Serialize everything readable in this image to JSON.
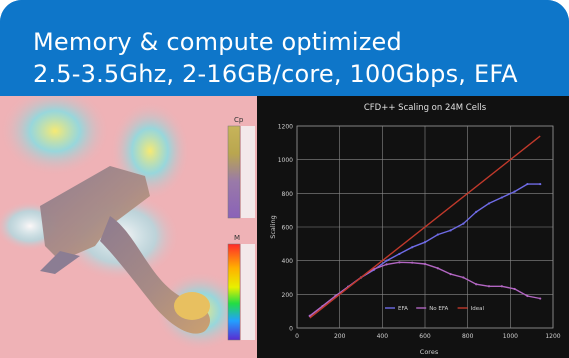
{
  "header": {
    "line1": "Memory & compute optimized",
    "line2": "2.5-3.5Ghz, 2-16GB/core, 100Gbps, EFA"
  },
  "simulation": {
    "legend_top_label": "Cp",
    "legend_bottom_label": "M"
  },
  "chart_data": {
    "type": "line",
    "title": "CFD++ Scaling on 24M Cells",
    "xlabel": "Cores",
    "ylabel": "Scaling",
    "xlim": [
      0,
      1200
    ],
    "ylim": [
      0,
      1200
    ],
    "xticks": [
      "0",
      "200",
      "400",
      "600",
      "800",
      "1000",
      "1200"
    ],
    "yticks": [
      "0",
      "200",
      "400",
      "600",
      "800",
      "1000",
      "1200"
    ],
    "grid": true,
    "legend_position": "bottom-center",
    "series": [
      {
        "name": "EFA",
        "color": "#6f6be6",
        "points": [
          [
            60,
            72
          ],
          [
            120,
            130
          ],
          [
            180,
            190
          ],
          [
            240,
            245
          ],
          [
            300,
            300
          ],
          [
            360,
            345
          ],
          [
            420,
            400
          ],
          [
            480,
            440
          ],
          [
            540,
            480
          ],
          [
            600,
            510
          ],
          [
            660,
            555
          ],
          [
            720,
            580
          ],
          [
            780,
            620
          ],
          [
            840,
            690
          ],
          [
            900,
            740
          ],
          [
            960,
            775
          ],
          [
            1020,
            810
          ],
          [
            1080,
            855
          ],
          [
            1140,
            855
          ]
        ]
      },
      {
        "name": "No EFA",
        "color": "#b266c2",
        "points": [
          [
            60,
            72
          ],
          [
            120,
            130
          ],
          [
            180,
            190
          ],
          [
            240,
            245
          ],
          [
            300,
            300
          ],
          [
            360,
            350
          ],
          [
            420,
            378
          ],
          [
            480,
            390
          ],
          [
            540,
            388
          ],
          [
            600,
            380
          ],
          [
            660,
            355
          ],
          [
            720,
            320
          ],
          [
            780,
            300
          ],
          [
            840,
            260
          ],
          [
            900,
            248
          ],
          [
            960,
            248
          ],
          [
            1020,
            232
          ],
          [
            1080,
            190
          ],
          [
            1140,
            175
          ]
        ]
      },
      {
        "name": "Ideal",
        "color": "#c0392b",
        "points": [
          [
            60,
            60
          ],
          [
            1140,
            1140
          ]
        ]
      }
    ]
  }
}
